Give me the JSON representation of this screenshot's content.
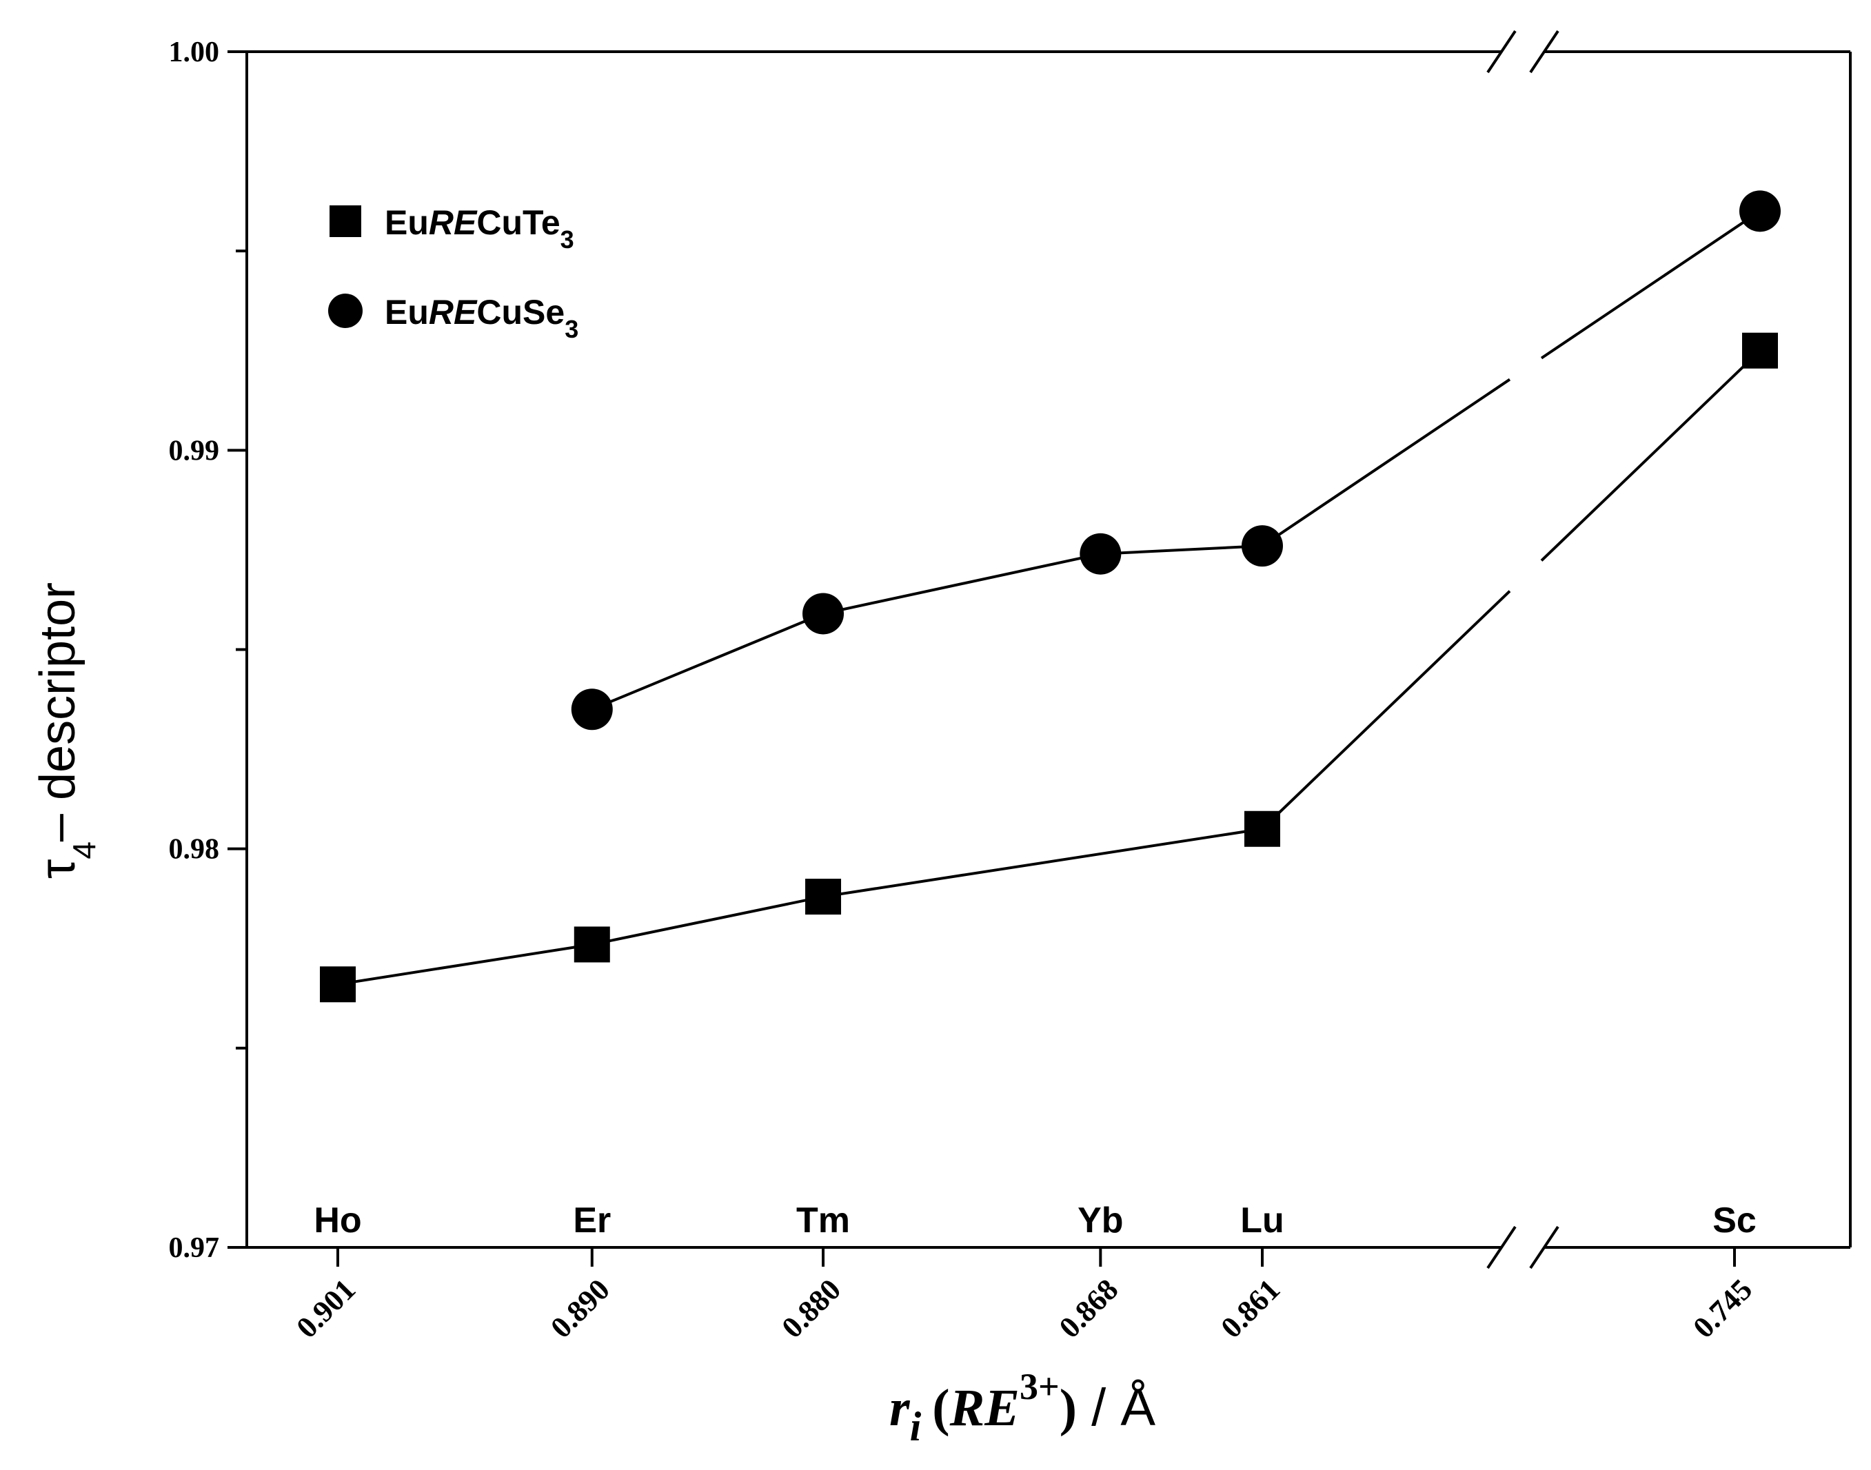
{
  "chart_data": {
    "type": "line",
    "xlabel": {
      "r": "r",
      "i": "i",
      "open": "(",
      "re": "RE",
      "sup": "3+",
      "close": ")",
      "unit": " / Å"
    },
    "ylabel": {
      "tau": "τ",
      "sub": "4",
      "text": "– descriptor"
    },
    "ylim": [
      0.97,
      1.0
    ],
    "y_ticks": [
      {
        "value": 0.97,
        "label": "0.97"
      },
      {
        "value": 0.975,
        "label": ""
      },
      {
        "value": 0.98,
        "label": "0.98"
      },
      {
        "value": 0.985,
        "label": ""
      },
      {
        "value": 0.99,
        "label": "0.99"
      },
      {
        "value": 0.995,
        "label": ""
      },
      {
        "value": 1.0,
        "label": "1.00"
      }
    ],
    "x_ticks": [
      {
        "element": "Ho",
        "radius": "0.901"
      },
      {
        "element": "Er",
        "radius": "0.890"
      },
      {
        "element": "Tm",
        "radius": "0.880"
      },
      {
        "element": "Yb",
        "radius": "0.868"
      },
      {
        "element": "Lu",
        "radius": "0.861"
      },
      {
        "element": "Sc",
        "radius": "0.745"
      }
    ],
    "axis_break": "between 0.861 and 0.745",
    "legend_placement": "top-left",
    "series": [
      {
        "name": {
          "pre": "Eu",
          "ital": "RE",
          "post": "CuTe",
          "sub": "3"
        },
        "marker": "square",
        "points": [
          {
            "x": 0.901,
            "y": 0.9766
          },
          {
            "x": 0.89,
            "y": 0.9776
          },
          {
            "x": 0.88,
            "y": 0.9788
          },
          {
            "x": 0.861,
            "y": 0.9805
          },
          {
            "x": 0.745,
            "y": 0.9925
          }
        ]
      },
      {
        "name": {
          "pre": "Eu",
          "ital": "RE",
          "post": "CuSe",
          "sub": "3"
        },
        "marker": "circle",
        "points": [
          {
            "x": 0.89,
            "y": 0.9835
          },
          {
            "x": 0.88,
            "y": 0.9859
          },
          {
            "x": 0.868,
            "y": 0.9874
          },
          {
            "x": 0.861,
            "y": 0.9876
          },
          {
            "x": 0.745,
            "y": 0.996
          }
        ]
      }
    ]
  }
}
